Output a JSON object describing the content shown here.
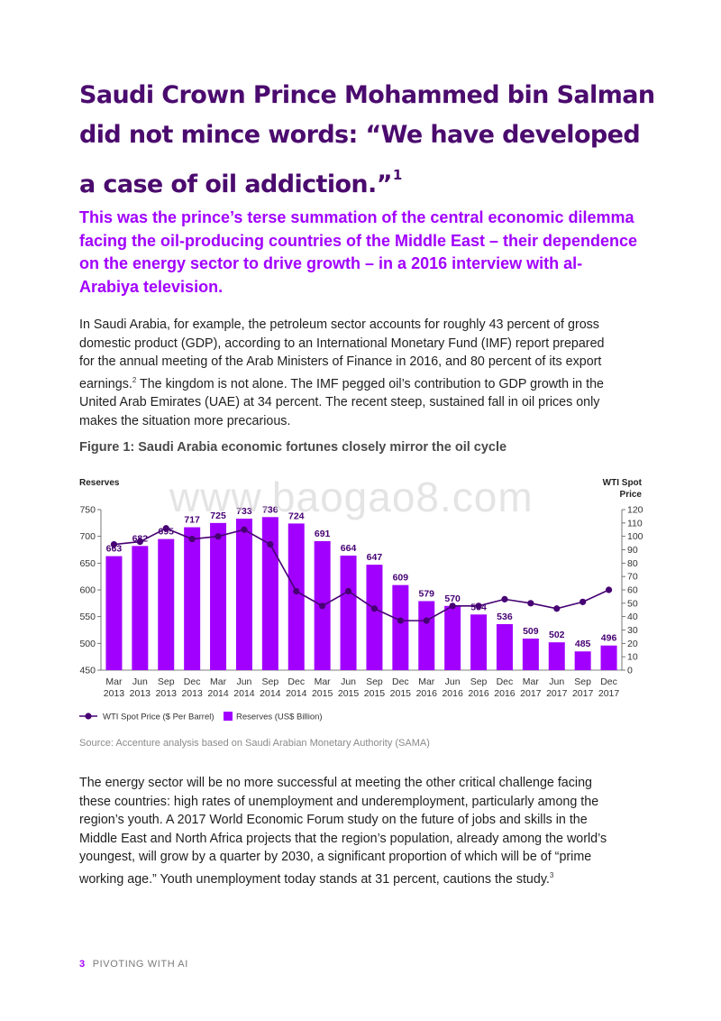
{
  "headline": {
    "text": "Saudi Crown Prince Mohammed bin Salman did not mince words: “We have developed a case of oil addiction.”",
    "footnote": "1"
  },
  "lead": "This was the prince’s terse summation of the central economic dilemma facing the oil-producing countries of the Middle East – their dependence on the energy sector to drive growth – in a 2016 interview with al-Arabiya television.",
  "paragraph1": {
    "part1": "In Saudi Arabia, for example, the petroleum sector accounts for roughly 43 percent of gross domestic product (GDP), according to an International Monetary Fund (IMF) report prepared for the annual meeting of the Arab Ministers of Finance in 2016, and 80 percent of its export earnings.",
    "footnote": "2",
    "part2": " The kingdom is not alone. The IMF pegged oil’s contribution to GDP growth in the United Arab Emirates (UAE) at 34 percent. The recent steep, sustained fall in oil prices only makes the situation more precarious."
  },
  "figure_title": "Figure 1: Saudi Arabia economic fortunes closely mirror the oil cycle",
  "watermark": "www.baogao8.com",
  "chart_data": {
    "type": "bar",
    "categories": [
      [
        "Mar",
        "2013"
      ],
      [
        "Jun",
        "2013"
      ],
      [
        "Sep",
        "2013"
      ],
      [
        "Dec",
        "2013"
      ],
      [
        "Mar",
        "2014"
      ],
      [
        "Jun",
        "2014"
      ],
      [
        "Sep",
        "2014"
      ],
      [
        "Dec",
        "2014"
      ],
      [
        "Mar",
        "2015"
      ],
      [
        "Jun",
        "2015"
      ],
      [
        "Sep",
        "2015"
      ],
      [
        "Dec",
        "2015"
      ],
      [
        "Mar",
        "2016"
      ],
      [
        "Jun",
        "2016"
      ],
      [
        "Sep",
        "2016"
      ],
      [
        "Dec",
        "2016"
      ],
      [
        "Mar",
        "2017"
      ],
      [
        "Jun",
        "2017"
      ],
      [
        "Sep",
        "2017"
      ],
      [
        "Dec",
        "2017"
      ]
    ],
    "series": [
      {
        "name": "Reserves (US$ Billion)",
        "type": "bar",
        "axis": "left",
        "color": "#a100ff",
        "values": [
          663,
          682,
          695,
          717,
          725,
          733,
          736,
          724,
          691,
          664,
          647,
          609,
          579,
          570,
          554,
          536,
          509,
          502,
          485,
          496
        ]
      },
      {
        "name": "WTI Spot Price ($ Per Barrel)",
        "type": "line",
        "axis": "right",
        "color": "#460073",
        "values": [
          94,
          96,
          106,
          98,
          100,
          105,
          94,
          59,
          48,
          59,
          46,
          37,
          37,
          48,
          48,
          53,
          50,
          46,
          51,
          60
        ]
      }
    ],
    "left_axis": {
      "label": "Reserves",
      "range": [
        450,
        750
      ],
      "ticks": [
        450,
        500,
        550,
        600,
        650,
        700,
        750
      ]
    },
    "right_axis": {
      "label_line1": "WTI Spot",
      "label_line2": "Price",
      "range": [
        0,
        120
      ],
      "ticks": [
        0,
        10,
        20,
        30,
        40,
        50,
        60,
        70,
        80,
        90,
        100,
        110,
        120
      ]
    },
    "legend_position": "bottom-left",
    "grid": false
  },
  "source": "Source: Accenture analysis based on Saudi Arabian Monetary Authority (SAMA)",
  "paragraph2": {
    "part1": "The energy sector will be no more successful at meeting the other critical challenge facing these countries: high rates of unemployment and underemployment, particularly among the region’s youth. A 2017 World Economic Forum study on the future of jobs and skills in the Middle East and North Africa projects that the region’s population, already among the world’s youngest, will grow by a quarter by 2030, a significant proportion of which will be of “prime working age.” Youth unemployment today stands at 31 percent, cautions the study.",
    "footnote": "3"
  },
  "footer": {
    "page_number": "3",
    "title": "PIVOTING WITH AI"
  }
}
